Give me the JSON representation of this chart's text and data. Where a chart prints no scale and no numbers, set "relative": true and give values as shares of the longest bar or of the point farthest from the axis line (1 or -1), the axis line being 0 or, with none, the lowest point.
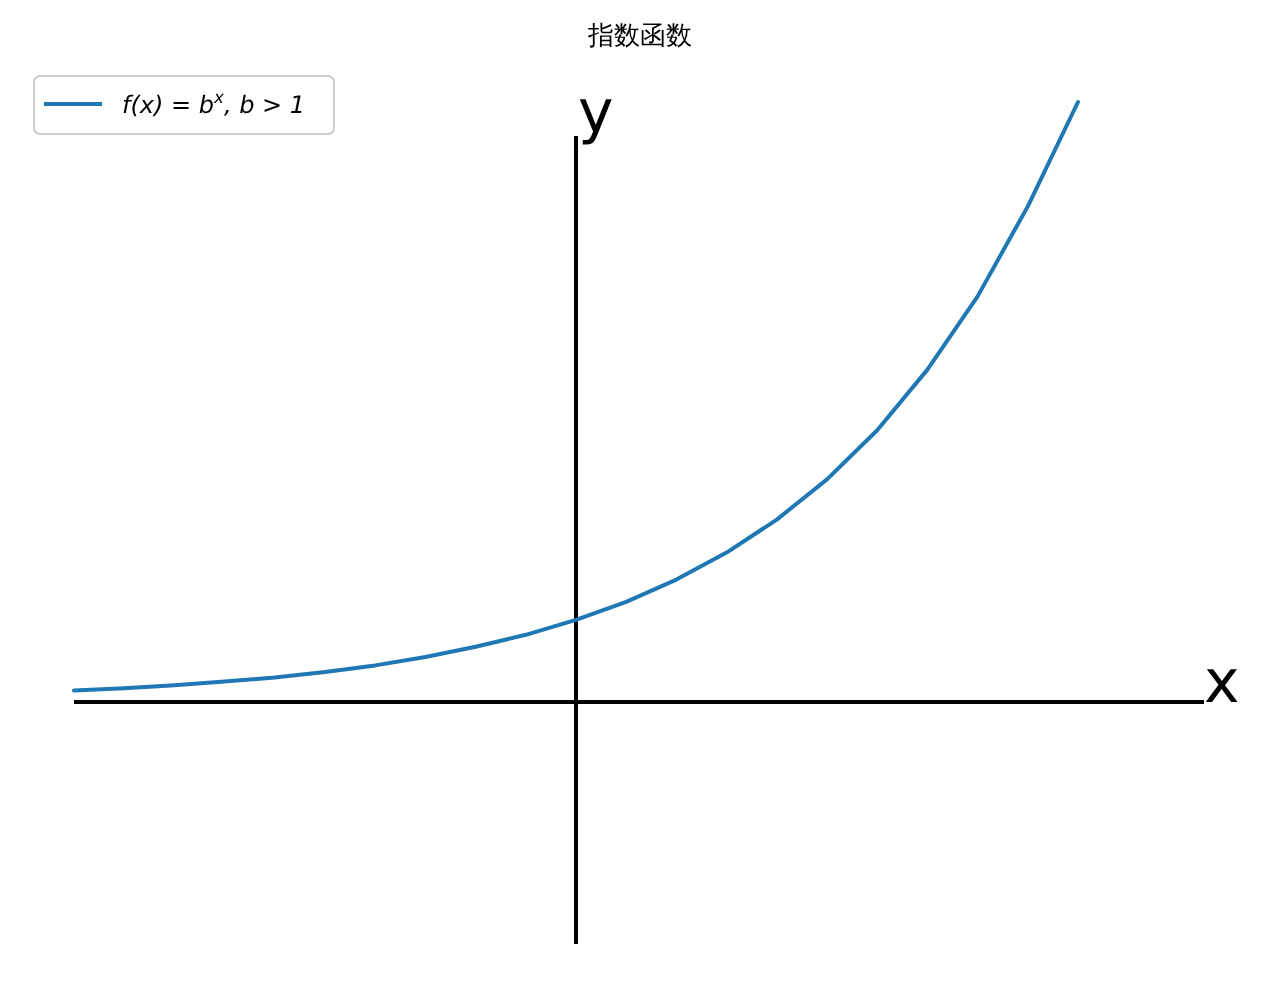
{
  "chart_data": {
    "type": "line",
    "title": "指数函数",
    "xlabel": "x",
    "ylabel": "y",
    "relative": true,
    "legend": "top left",
    "categories": [
      null,
      null,
      null,
      null,
      null,
      null,
      null,
      null,
      null,
      null,
      null,
      null,
      null,
      null,
      null,
      null,
      null,
      null,
      null,
      null,
      null
    ],
    "series": [
      {
        "name": "f(x) = b$^{x}$, b > 1",
        "color": "#1f77b4",
        "values": [
          0.019,
          0.023,
          0.028,
          0.034,
          0.041,
          0.05,
          0.061,
          0.075,
          0.092,
          0.112,
          0.137,
          0.167,
          0.204,
          0.249,
          0.304,
          0.371,
          0.453,
          0.554,
          0.676,
          0.826,
          1.0
        ]
      }
    ]
  }
}
